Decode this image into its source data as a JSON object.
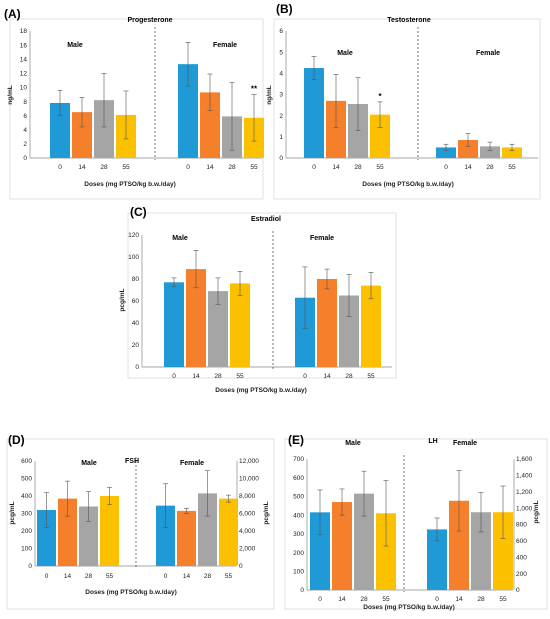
{
  "colors": [
    "#1f9ad6",
    "#f57f2a",
    "#a5a5a5",
    "#fbc101"
  ],
  "chart_data": [
    {
      "type": "bar",
      "panel": "(A)",
      "title": "Progesterone",
      "ylabel": "ng/mL",
      "xlabel": "Doses (mg PTSO/kg b.w./day)",
      "ylim": [
        0,
        18
      ],
      "yticks": [
        0,
        2,
        4,
        6,
        8,
        10,
        12,
        14,
        16,
        18
      ],
      "categories": [
        "0",
        "14",
        "28",
        "55"
      ],
      "groups": [
        {
          "name": "Male",
          "values": [
            7.8,
            6.5,
            8.2,
            6.1
          ],
          "errors": [
            1.8,
            2.1,
            3.8,
            3.4
          ],
          "sig": [
            "",
            "",
            "",
            ""
          ]
        },
        {
          "name": "Female",
          "values": [
            13.3,
            9.3,
            5.9,
            5.7
          ],
          "errors": [
            3.1,
            2.6,
            4.8,
            3.3
          ],
          "sig": [
            "",
            "",
            "",
            "**"
          ]
        }
      ]
    },
    {
      "type": "bar",
      "panel": "(B)",
      "title": "Testosterone",
      "ylabel": "ng/mL",
      "xlabel": "Doses (mg PTSO/kg b.w./day)",
      "ylim": [
        0,
        6
      ],
      "yticks": [
        0,
        1,
        2,
        3,
        4,
        5,
        6
      ],
      "categories": [
        "0",
        "14",
        "28",
        "55"
      ],
      "groups": [
        {
          "name": "Male",
          "values": [
            4.25,
            2.7,
            2.55,
            2.05
          ],
          "errors": [
            0.55,
            1.25,
            1.25,
            0.6
          ],
          "sig": [
            "",
            "",
            "",
            "*"
          ]
        },
        {
          "name": "Female",
          "values": [
            0.5,
            0.85,
            0.55,
            0.5
          ],
          "errors": [
            0.15,
            0.3,
            0.2,
            0.15
          ],
          "sig": [
            "",
            "",
            "",
            ""
          ]
        }
      ]
    },
    {
      "type": "bar",
      "panel": "(C)",
      "title": "Estradiol",
      "ylabel": "pcg/mL",
      "xlabel": "Doses (mg PTSO/kg b.w./day)",
      "ylim": [
        0,
        120
      ],
      "yticks": [
        0,
        20,
        40,
        60,
        80,
        100,
        120
      ],
      "categories": [
        "0",
        "14",
        "28",
        "55"
      ],
      "groups": [
        {
          "name": "Male",
          "values": [
            77,
            89,
            69,
            76
          ],
          "errors": [
            4,
            17,
            12,
            11
          ],
          "sig": [
            "",
            "",
            "",
            ""
          ]
        },
        {
          "name": "Female",
          "values": [
            63,
            80,
            65,
            74
          ],
          "errors": [
            28,
            9,
            19,
            12
          ],
          "sig": [
            "",
            "",
            "",
            ""
          ]
        }
      ]
    },
    {
      "type": "bar",
      "panel": "(D)",
      "title": "FSH",
      "ylabel": "pcg/mL",
      "ylabel_right": "pcg/mL",
      "xlabel": "Doses (mg PTSO/kg b.w./day)",
      "ylim": [
        0,
        600
      ],
      "yticks": [
        0,
        100,
        200,
        300,
        400,
        500,
        600
      ],
      "ylim_right": [
        0,
        12000
      ],
      "yticks_right": [
        "0",
        "2,000",
        "4,000",
        "6,000",
        "8,000",
        "10,000",
        "12,000"
      ],
      "categories": [
        "0",
        "14",
        "28",
        "55"
      ],
      "groups": [
        {
          "name": "Male",
          "values": [
            320,
            385,
            340,
            400
          ],
          "errors": [
            100,
            100,
            85,
            50
          ],
          "sig": [
            "",
            "",
            "",
            ""
          ],
          "axis": "left"
        },
        {
          "name": "Female",
          "values": [
            6900,
            6300,
            8300,
            7700
          ],
          "errors": [
            2500,
            300,
            2600,
            400
          ],
          "sig": [
            "",
            "",
            "",
            ""
          ],
          "axis": "right"
        }
      ]
    },
    {
      "type": "bar",
      "panel": "(E)",
      "title": "LH",
      "ylabel_right": "pcg/mL",
      "xlabel": "Doses (mg PTSO/kg b.w./day)",
      "ylim": [
        0,
        700
      ],
      "yticks": [
        0,
        100,
        200,
        300,
        400,
        500,
        600,
        700
      ],
      "ylim_right": [
        0,
        1600
      ],
      "yticks_right": [
        "0",
        "200",
        "400",
        "600",
        "800",
        "1,000",
        "1,200",
        "1,400",
        "1,600"
      ],
      "categories": [
        "0",
        "14",
        "28",
        "55"
      ],
      "groups": [
        {
          "name": "Male",
          "values": [
            415,
            470,
            515,
            410
          ],
          "errors": [
            120,
            70,
            120,
            175
          ],
          "sig": [
            "",
            "",
            "",
            ""
          ],
          "axis": "left"
        },
        {
          "name": "Female",
          "values": [
            740,
            1090,
            950,
            950
          ],
          "errors": [
            140,
            370,
            240,
            320
          ],
          "sig": [
            "",
            "",
            "",
            ""
          ],
          "axis": "right"
        }
      ]
    }
  ]
}
